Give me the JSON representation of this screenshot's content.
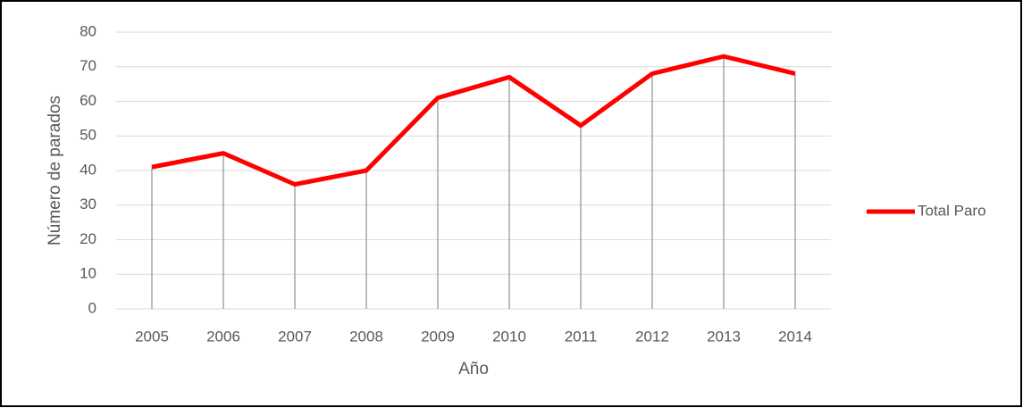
{
  "chart_data": {
    "type": "line",
    "categories": [
      "2005",
      "2006",
      "2007",
      "2008",
      "2009",
      "2010",
      "2011",
      "2012",
      "2013",
      "2014"
    ],
    "series": [
      {
        "name": "Total Paro",
        "color": "#ff0000",
        "values": [
          41,
          45,
          36,
          40,
          61,
          67,
          53,
          68,
          73,
          68
        ]
      }
    ],
    "xlabel": "Año",
    "ylabel": "Número de parados",
    "ylim": [
      0,
      80
    ],
    "yticks": [
      0,
      10,
      20,
      30,
      40,
      50,
      60,
      70,
      80
    ],
    "grid": true,
    "drop_lines": true,
    "legend": "right"
  }
}
